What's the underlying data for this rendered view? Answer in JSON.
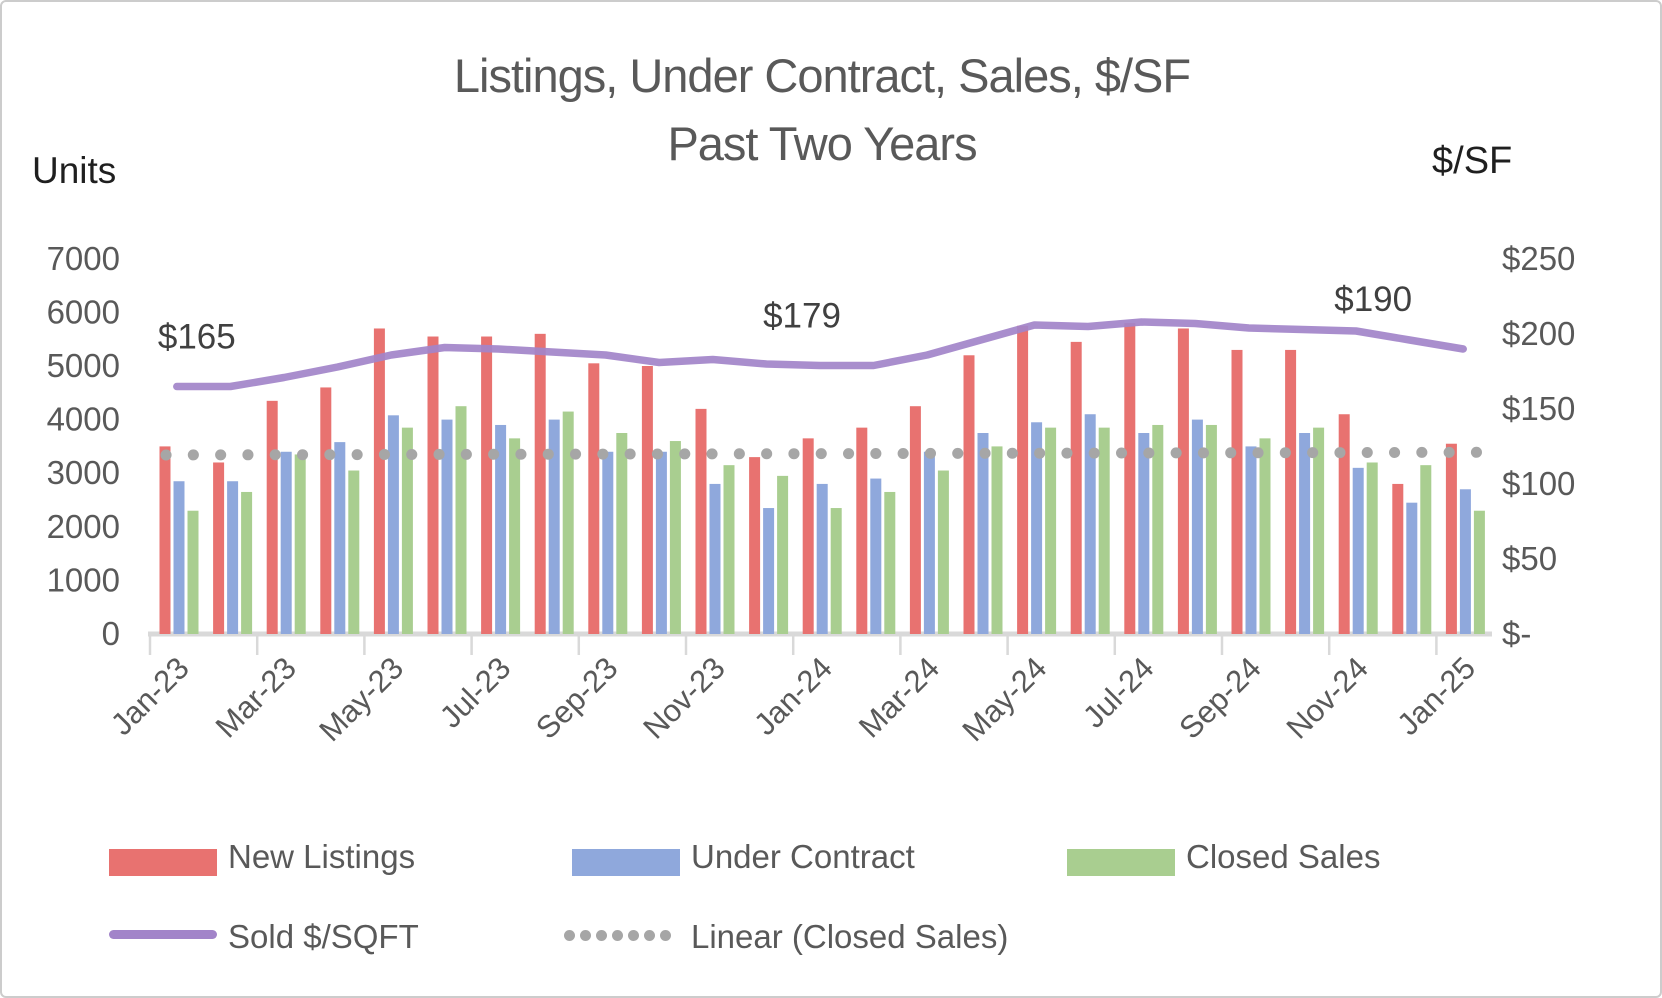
{
  "title": {
    "line1": "Listings, Under Contract, Sales,  $/SF",
    "line2": "Past Two Years"
  },
  "axes": {
    "left": {
      "title": "Units",
      "ticks": [
        7000,
        6000,
        5000,
        4000,
        3000,
        2000,
        1000,
        0
      ],
      "ylim": [
        0,
        7000
      ]
    },
    "right": {
      "title": "$/SF",
      "ticks": [
        {
          "label": "$250",
          "value": 250
        },
        {
          "label": "$200",
          "value": 200
        },
        {
          "label": "$150",
          "value": 150
        },
        {
          "label": "$100",
          "value": 100
        },
        {
          "label": "$50",
          "value": 50
        },
        {
          "label": "$-",
          "value": 0
        }
      ],
      "ylim": [
        0,
        250
      ]
    }
  },
  "chart_data": {
    "type": "bar",
    "subtype": "grouped bars with secondary-axis line and linear trendline",
    "title": "Listings, Under Contract, Sales, $/SF Past Two Years",
    "xlabel": "",
    "ylabel": "Units",
    "ylabel_right": "$/SF",
    "left_ylim": [
      0,
      7000
    ],
    "right_ylim": [
      0,
      250
    ],
    "grid": false,
    "legend_position": "bottom",
    "categories": [
      "Jan-23",
      "Feb-23",
      "Mar-23",
      "Apr-23",
      "May-23",
      "Jun-23",
      "Jul-23",
      "Aug-23",
      "Sep-23",
      "Oct-23",
      "Nov-23",
      "Dec-23",
      "Jan-24",
      "Feb-24",
      "Mar-24",
      "Apr-24",
      "May-24",
      "Jun-24",
      "Jul-24",
      "Aug-24",
      "Sep-24",
      "Oct-24",
      "Nov-24",
      "Dec-24",
      "Jan-25"
    ],
    "x_labels_shown_every": 2,
    "series": [
      {
        "name": "New Listings",
        "type": "bar",
        "axis": "left",
        "color": "#E87270",
        "values": [
          3500,
          3200,
          4350,
          4600,
          5700,
          5550,
          5550,
          5600,
          5050,
          5000,
          4200,
          3300,
          3650,
          3850,
          4250,
          5200,
          5750,
          5450,
          5800,
          5700,
          5300,
          5300,
          4100,
          2800,
          3550
        ]
      },
      {
        "name": "Under Contract",
        "type": "bar",
        "axis": "left",
        "color": "#8FA8DC",
        "values": [
          2850,
          2850,
          3400,
          3580,
          4080,
          4000,
          3900,
          4000,
          3400,
          3400,
          2800,
          2350,
          2800,
          2900,
          3400,
          3750,
          3950,
          4100,
          3750,
          4000,
          3500,
          3750,
          3100,
          2450,
          2700
        ]
      },
      {
        "name": "Closed Sales",
        "type": "bar",
        "axis": "left",
        "color": "#A9CE90",
        "values": [
          2300,
          2650,
          3350,
          3050,
          3850,
          4250,
          3650,
          4150,
          3750,
          3600,
          3150,
          2950,
          2350,
          2650,
          3050,
          3500,
          3850,
          3850,
          3900,
          3900,
          3650,
          3850,
          3200,
          3150,
          2300
        ]
      },
      {
        "name": "Sold $/SQFT",
        "type": "line",
        "axis": "right",
        "color": "#A284C9",
        "values": [
          165,
          165,
          171,
          178,
          186,
          191,
          190,
          188,
          186,
          181,
          183,
          180,
          179,
          179,
          186,
          196,
          206,
          205,
          208,
          207,
          204,
          203,
          202,
          196,
          190
        ]
      },
      {
        "name": "Linear (Closed Sales)",
        "type": "trendline",
        "axis": "left",
        "color": "#A6A6A6",
        "start_value": 3340,
        "end_value": 3390
      }
    ],
    "point_labels": [
      {
        "text": "$165",
        "series": "Sold $/SQFT",
        "index": 0,
        "dx": 20
      },
      {
        "text": "$179",
        "series": "Sold $/SQFT",
        "index": 12,
        "dx": -18
      },
      {
        "text": "$190",
        "series": "Sold $/SQFT",
        "index": 24,
        "dx": -90
      }
    ]
  },
  "legend": {
    "new_listings": "New Listings",
    "under_contract": "Under Contract",
    "closed_sales": "Closed Sales",
    "sold_psf": "Sold $/SQFT",
    "linear": "Linear (Closed Sales)"
  },
  "colors": {
    "title_text": "#595959",
    "axis_text": "#595959",
    "axis_line": "#D9D9D9",
    "point_label_text": "#404040"
  }
}
